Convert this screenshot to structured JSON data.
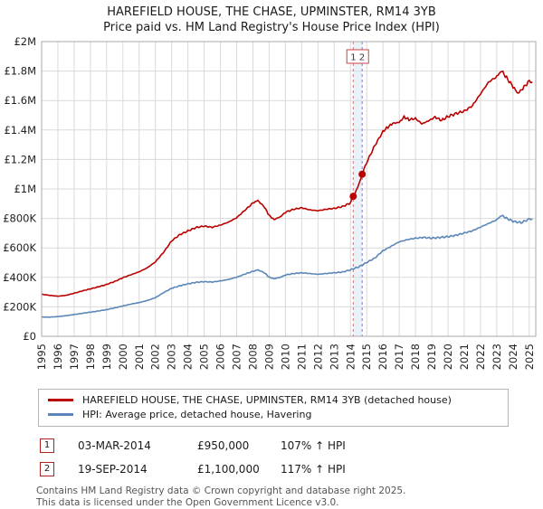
{
  "title": {
    "line1": "HAREFIELD HOUSE, THE CHASE, UPMINSTER, RM14 3YB",
    "line2": "Price paid vs. HM Land Registry's House Price Index (HPI)"
  },
  "chart_data": {
    "type": "line",
    "x_range": [
      1995,
      2025.4
    ],
    "y_range": [
      0,
      2000000
    ],
    "grid": true,
    "x_ticks": [
      1995,
      1996,
      1997,
      1998,
      1999,
      2000,
      2001,
      2002,
      2003,
      2004,
      2005,
      2006,
      2007,
      2008,
      2009,
      2010,
      2011,
      2012,
      2013,
      2014,
      2015,
      2016,
      2017,
      2018,
      2019,
      2020,
      2021,
      2022,
      2023,
      2024,
      2025
    ],
    "y_ticks": [
      {
        "v": 0,
        "label": "£0"
      },
      {
        "v": 200000,
        "label": "£200K"
      },
      {
        "v": 400000,
        "label": "£400K"
      },
      {
        "v": 600000,
        "label": "£600K"
      },
      {
        "v": 800000,
        "label": "£800K"
      },
      {
        "v": 1000000,
        "label": "£1M"
      },
      {
        "v": 1200000,
        "label": "£1.2M"
      },
      {
        "v": 1400000,
        "label": "£1.4M"
      },
      {
        "v": 1600000,
        "label": "£1.6M"
      },
      {
        "v": 1800000,
        "label": "£1.8M"
      },
      {
        "v": 2000000,
        "label": "£2M"
      }
    ],
    "series": [
      {
        "name": "HAREFIELD HOUSE, THE CHASE, UPMINSTER, RM14 3YB (detached house)",
        "color": "#bb0000",
        "points": [
          [
            1995.0,
            285000
          ],
          [
            1995.5,
            278000
          ],
          [
            1996.0,
            272000
          ],
          [
            1996.5,
            278000
          ],
          [
            1997.0,
            292000
          ],
          [
            1997.5,
            308000
          ],
          [
            1998.0,
            322000
          ],
          [
            1998.5,
            336000
          ],
          [
            1999.0,
            352000
          ],
          [
            1999.5,
            372000
          ],
          [
            2000.0,
            398000
          ],
          [
            2000.5,
            418000
          ],
          [
            2001.0,
            438000
          ],
          [
            2001.5,
            465000
          ],
          [
            2002.0,
            505000
          ],
          [
            2002.5,
            570000
          ],
          [
            2003.0,
            648000
          ],
          [
            2003.5,
            690000
          ],
          [
            2004.0,
            715000
          ],
          [
            2004.5,
            738000
          ],
          [
            2005.0,
            748000
          ],
          [
            2005.5,
            740000
          ],
          [
            2006.0,
            755000
          ],
          [
            2006.5,
            775000
          ],
          [
            2007.0,
            805000
          ],
          [
            2007.5,
            855000
          ],
          [
            2008.0,
            905000
          ],
          [
            2008.3,
            922000
          ],
          [
            2008.7,
            878000
          ],
          [
            2009.0,
            820000
          ],
          [
            2009.3,
            792000
          ],
          [
            2009.7,
            812000
          ],
          [
            2010.0,
            842000
          ],
          [
            2010.5,
            862000
          ],
          [
            2011.0,
            872000
          ],
          [
            2011.5,
            858000
          ],
          [
            2012.0,
            852000
          ],
          [
            2012.5,
            862000
          ],
          [
            2013.0,
            868000
          ],
          [
            2013.5,
            880000
          ],
          [
            2014.0,
            905000
          ],
          [
            2014.17,
            950000
          ],
          [
            2014.45,
            1010000
          ],
          [
            2014.72,
            1100000
          ],
          [
            2015.0,
            1180000
          ],
          [
            2015.5,
            1295000
          ],
          [
            2016.0,
            1390000
          ],
          [
            2016.3,
            1420000
          ],
          [
            2016.6,
            1445000
          ],
          [
            2017.0,
            1452000
          ],
          [
            2017.3,
            1488000
          ],
          [
            2017.6,
            1470000
          ],
          [
            2018.0,
            1478000
          ],
          [
            2018.4,
            1442000
          ],
          [
            2018.8,
            1462000
          ],
          [
            2019.2,
            1488000
          ],
          [
            2019.6,
            1465000
          ],
          [
            2020.0,
            1492000
          ],
          [
            2020.5,
            1512000
          ],
          [
            2021.0,
            1528000
          ],
          [
            2021.5,
            1565000
          ],
          [
            2022.0,
            1645000
          ],
          [
            2022.5,
            1725000
          ],
          [
            2023.0,
            1762000
          ],
          [
            2023.3,
            1802000
          ],
          [
            2023.6,
            1755000
          ],
          [
            2024.0,
            1695000
          ],
          [
            2024.3,
            1648000
          ],
          [
            2024.6,
            1682000
          ],
          [
            2025.0,
            1732000
          ],
          [
            2025.2,
            1725000
          ]
        ]
      },
      {
        "name": "HPI: Average price, detached house, Havering",
        "color": "#5b87b8",
        "points": [
          [
            1995.0,
            131000
          ],
          [
            1995.5,
            130000
          ],
          [
            1996.0,
            134000
          ],
          [
            1996.5,
            140000
          ],
          [
            1997.0,
            148000
          ],
          [
            1997.5,
            156000
          ],
          [
            1998.0,
            164000
          ],
          [
            1998.5,
            172000
          ],
          [
            1999.0,
            181000
          ],
          [
            1999.5,
            193000
          ],
          [
            2000.0,
            206000
          ],
          [
            2000.5,
            219000
          ],
          [
            2001.0,
            229000
          ],
          [
            2001.5,
            243000
          ],
          [
            2002.0,
            262000
          ],
          [
            2002.5,
            296000
          ],
          [
            2003.0,
            326000
          ],
          [
            2003.5,
            343000
          ],
          [
            2004.0,
            356000
          ],
          [
            2004.5,
            366000
          ],
          [
            2005.0,
            371000
          ],
          [
            2005.5,
            368000
          ],
          [
            2006.0,
            376000
          ],
          [
            2006.5,
            386000
          ],
          [
            2007.0,
            401000
          ],
          [
            2007.5,
            422000
          ],
          [
            2008.0,
            441000
          ],
          [
            2008.3,
            451000
          ],
          [
            2008.7,
            432000
          ],
          [
            2009.0,
            401000
          ],
          [
            2009.3,
            391000
          ],
          [
            2009.7,
            401000
          ],
          [
            2010.0,
            416000
          ],
          [
            2010.5,
            426000
          ],
          [
            2011.0,
            431000
          ],
          [
            2011.5,
            426000
          ],
          [
            2012.0,
            421000
          ],
          [
            2012.5,
            426000
          ],
          [
            2013.0,
            431000
          ],
          [
            2013.5,
            436000
          ],
          [
            2014.0,
            451000
          ],
          [
            2014.5,
            471000
          ],
          [
            2015.0,
            501000
          ],
          [
            2015.5,
            531000
          ],
          [
            2016.0,
            581000
          ],
          [
            2016.5,
            611000
          ],
          [
            2017.0,
            641000
          ],
          [
            2017.5,
            656000
          ],
          [
            2018.0,
            666000
          ],
          [
            2018.5,
            671000
          ],
          [
            2019.0,
            666000
          ],
          [
            2019.5,
            671000
          ],
          [
            2020.0,
            676000
          ],
          [
            2020.5,
            686000
          ],
          [
            2021.0,
            701000
          ],
          [
            2021.5,
            716000
          ],
          [
            2022.0,
            741000
          ],
          [
            2022.5,
            766000
          ],
          [
            2023.0,
            791000
          ],
          [
            2023.3,
            821000
          ],
          [
            2023.6,
            801000
          ],
          [
            2024.0,
            781000
          ],
          [
            2024.5,
            771000
          ],
          [
            2025.0,
            796000
          ],
          [
            2025.2,
            798000
          ]
        ]
      }
    ],
    "sales": [
      {
        "num": "1",
        "x": 2014.17,
        "y": 950000
      },
      {
        "num": "2",
        "x": 2014.72,
        "y": 1100000
      }
    ]
  },
  "legend": {
    "items": [
      {
        "label": "HAREFIELD HOUSE, THE CHASE, UPMINSTER, RM14 3YB (detached house)",
        "color": "#bb0000"
      },
      {
        "label": "HPI: Average price, detached house, Havering",
        "color": "#5b87b8"
      }
    ]
  },
  "annotations": [
    {
      "num": "1",
      "date": "03-MAR-2014",
      "price": "£950,000",
      "hpi": "107% ↑ HPI"
    },
    {
      "num": "2",
      "date": "19-SEP-2014",
      "price": "£1,100,000",
      "hpi": "117% ↑ HPI"
    }
  ],
  "footer": {
    "line1": "Contains HM Land Registry data © Crown copyright and database right 2025.",
    "line2": "This data is licensed under the Open Government Licence v3.0."
  }
}
